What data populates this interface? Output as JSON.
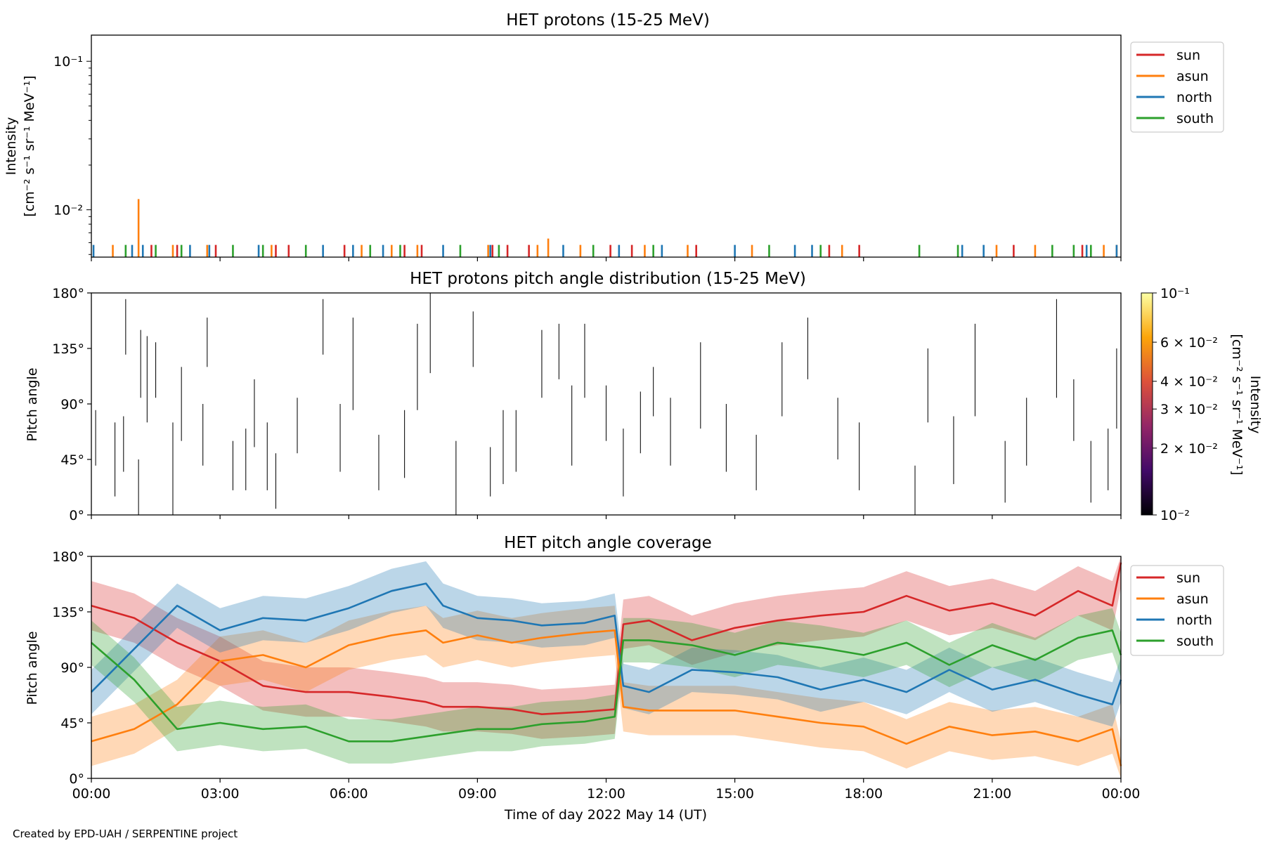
{
  "colors": {
    "sun": "#d62728",
    "asun": "#ff7f0e",
    "north": "#1f77b4",
    "south": "#2ca02c"
  },
  "xaxis": {
    "label": "Time of day 2022 May 14 (UT)",
    "ticks": [
      "00:00",
      "03:00",
      "06:00",
      "09:00",
      "12:00",
      "15:00",
      "18:00",
      "21:00",
      "00:00"
    ],
    "range_hours": [
      0,
      24
    ]
  },
  "footer": {
    "credit": "Created by EPD-UAH / SERPENTINE project"
  },
  "chart_data": [
    {
      "type": "line",
      "title": "HET protons (15-25 MeV)",
      "ylabel_lines": [
        "Intensity",
        "[cm⁻² s⁻¹ sr⁻¹ MeV⁻¹]"
      ],
      "yscale": "log",
      "ylim": [
        0.0048,
        0.15
      ],
      "yticks": [
        {
          "value": 0.1,
          "label": "10⁻¹"
        },
        {
          "value": 0.01,
          "label": "10⁻²"
        }
      ],
      "legend_position": "outside-right",
      "series": [
        {
          "name": "sun",
          "spikes": [
            [
              1.4,
              0.0058
            ],
            [
              2.0,
              0.0058
            ],
            [
              2.9,
              0.0058
            ],
            [
              4.3,
              0.0058
            ],
            [
              4.6,
              0.0058
            ],
            [
              5.9,
              0.0058
            ],
            [
              7.3,
              0.0058
            ],
            [
              7.7,
              0.0058
            ],
            [
              9.35,
              0.0058
            ],
            [
              9.7,
              0.0058
            ],
            [
              10.2,
              0.0058
            ],
            [
              12.1,
              0.0058
            ],
            [
              12.6,
              0.0058
            ],
            [
              14.1,
              0.0058
            ],
            [
              17.2,
              0.0058
            ],
            [
              17.9,
              0.0058
            ],
            [
              21.5,
              0.0058
            ],
            [
              23.1,
              0.0058
            ]
          ]
        },
        {
          "name": "asun",
          "spikes": [
            [
              0.5,
              0.0058
            ],
            [
              1.1,
              0.0118
            ],
            [
              1.9,
              0.0058
            ],
            [
              2.7,
              0.0058
            ],
            [
              4.2,
              0.0058
            ],
            [
              6.3,
              0.0058
            ],
            [
              7.0,
              0.0058
            ],
            [
              7.6,
              0.0058
            ],
            [
              9.25,
              0.0058
            ],
            [
              10.4,
              0.0058
            ],
            [
              10.65,
              0.0064
            ],
            [
              11.4,
              0.0058
            ],
            [
              12.9,
              0.0058
            ],
            [
              13.9,
              0.0058
            ],
            [
              15.4,
              0.0058
            ],
            [
              17.5,
              0.0058
            ],
            [
              21.1,
              0.0058
            ],
            [
              22.0,
              0.0058
            ],
            [
              23.6,
              0.0058
            ],
            [
              23.9,
              0.0058
            ]
          ]
        },
        {
          "name": "north",
          "spikes": [
            [
              0.05,
              0.0058
            ],
            [
              0.95,
              0.0058
            ],
            [
              1.2,
              0.0058
            ],
            [
              2.3,
              0.0058
            ],
            [
              2.75,
              0.0058
            ],
            [
              3.9,
              0.0058
            ],
            [
              5.4,
              0.0058
            ],
            [
              6.1,
              0.0058
            ],
            [
              6.8,
              0.0058
            ],
            [
              8.2,
              0.0058
            ],
            [
              9.3,
              0.0058
            ],
            [
              11.0,
              0.0058
            ],
            [
              12.3,
              0.0058
            ],
            [
              13.3,
              0.0058
            ],
            [
              15.0,
              0.0058
            ],
            [
              16.4,
              0.0058
            ],
            [
              16.8,
              0.0058
            ],
            [
              20.3,
              0.0058
            ],
            [
              20.8,
              0.0058
            ],
            [
              23.2,
              0.0058
            ],
            [
              23.9,
              0.0058
            ]
          ]
        },
        {
          "name": "south",
          "spikes": [
            [
              0.8,
              0.0058
            ],
            [
              1.5,
              0.0058
            ],
            [
              2.1,
              0.0058
            ],
            [
              3.3,
              0.0058
            ],
            [
              4.0,
              0.0058
            ],
            [
              5.0,
              0.0058
            ],
            [
              6.5,
              0.0058
            ],
            [
              7.2,
              0.0058
            ],
            [
              8.6,
              0.0058
            ],
            [
              9.5,
              0.0058
            ],
            [
              11.7,
              0.0058
            ],
            [
              13.1,
              0.0058
            ],
            [
              15.8,
              0.0058
            ],
            [
              17.0,
              0.0058
            ],
            [
              19.3,
              0.0058
            ],
            [
              20.2,
              0.0058
            ],
            [
              22.4,
              0.0058
            ],
            [
              22.9,
              0.0058
            ],
            [
              23.3,
              0.0058
            ]
          ]
        }
      ]
    },
    {
      "type": "scatter",
      "title": "HET protons pitch angle distribution (15-25 MeV)",
      "ylabel": "Pitch angle",
      "ylim": [
        0,
        180
      ],
      "yticks": [
        "0°",
        "45°",
        "90°",
        "135°",
        "180°"
      ],
      "colorbar": {
        "label_lines": [
          "Intensity",
          "[cm⁻² s⁻¹ sr⁻¹ MeV⁻¹]"
        ],
        "scale": "log",
        "range": [
          0.01,
          0.1
        ],
        "ticks": [
          {
            "value": 0.01,
            "label": "10⁻²"
          },
          {
            "value": 0.02,
            "label": "2 × 10⁻²"
          },
          {
            "value": 0.03,
            "label": "3 × 10⁻²"
          },
          {
            "value": 0.04,
            "label": "4 × 10⁻²"
          },
          {
            "value": 0.06,
            "label": "6 × 10⁻²"
          },
          {
            "value": 0.1,
            "label": "10⁻¹"
          }
        ],
        "colors": [
          "#000004",
          "#420a68",
          "#932667",
          "#dd513a",
          "#fca50a",
          "#fcffa4"
        ]
      },
      "segments": [
        [
          0.1,
          40,
          85
        ],
        [
          0.55,
          15,
          75
        ],
        [
          0.75,
          35,
          80
        ],
        [
          0.8,
          130,
          175
        ],
        [
          1.1,
          0,
          45
        ],
        [
          1.15,
          95,
          150
        ],
        [
          1.3,
          75,
          145
        ],
        [
          1.5,
          95,
          140
        ],
        [
          1.9,
          0,
          75
        ],
        [
          2.1,
          60,
          120
        ],
        [
          2.6,
          40,
          90
        ],
        [
          2.7,
          120,
          160
        ],
        [
          3.3,
          20,
          60
        ],
        [
          3.6,
          20,
          70
        ],
        [
          3.8,
          55,
          110
        ],
        [
          4.1,
          20,
          75
        ],
        [
          4.3,
          5,
          50
        ],
        [
          4.8,
          50,
          95
        ],
        [
          5.4,
          130,
          175
        ],
        [
          5.8,
          35,
          90
        ],
        [
          6.1,
          85,
          160
        ],
        [
          6.7,
          20,
          65
        ],
        [
          7.3,
          30,
          85
        ],
        [
          7.6,
          85,
          155
        ],
        [
          7.9,
          115,
          180
        ],
        [
          8.5,
          0,
          60
        ],
        [
          8.9,
          120,
          165
        ],
        [
          9.3,
          15,
          55
        ],
        [
          9.6,
          25,
          85
        ],
        [
          9.9,
          35,
          85
        ],
        [
          10.5,
          95,
          150
        ],
        [
          10.9,
          110,
          155
        ],
        [
          11.2,
          40,
          105
        ],
        [
          11.5,
          95,
          155
        ],
        [
          12.0,
          60,
          105
        ],
        [
          12.4,
          15,
          70
        ],
        [
          12.8,
          50,
          100
        ],
        [
          13.1,
          80,
          120
        ],
        [
          13.5,
          40,
          95
        ],
        [
          14.2,
          70,
          140
        ],
        [
          14.8,
          35,
          90
        ],
        [
          15.5,
          20,
          65
        ],
        [
          16.1,
          80,
          140
        ],
        [
          16.7,
          110,
          160
        ],
        [
          17.4,
          45,
          95
        ],
        [
          17.9,
          20,
          75
        ],
        [
          19.2,
          0,
          40
        ],
        [
          19.5,
          75,
          135
        ],
        [
          20.1,
          25,
          80
        ],
        [
          20.6,
          80,
          155
        ],
        [
          21.3,
          10,
          60
        ],
        [
          21.8,
          40,
          95
        ],
        [
          22.5,
          95,
          175
        ],
        [
          22.9,
          60,
          110
        ],
        [
          23.3,
          10,
          60
        ],
        [
          23.7,
          20,
          70
        ],
        [
          23.9,
          70,
          135
        ]
      ]
    },
    {
      "type": "area",
      "title": "HET pitch angle coverage",
      "ylabel": "Pitch angle",
      "ylim": [
        0,
        180
      ],
      "yticks": [
        "0°",
        "45°",
        "90°",
        "135°",
        "180°"
      ],
      "legend_position": "outside-right",
      "series": [
        {
          "name": "sun",
          "band_halfwidth": 20,
          "x": [
            0,
            1,
            2,
            3,
            4,
            5,
            6,
            7,
            7.8,
            8.2,
            9,
            9.8,
            10.5,
            11.5,
            12.2,
            12.4,
            13,
            14,
            15,
            16,
            17,
            18,
            19,
            20,
            21,
            22,
            23,
            23.8,
            24
          ],
          "y": [
            140,
            130,
            110,
            95,
            75,
            70,
            70,
            66,
            62,
            58,
            58,
            56,
            52,
            54,
            56,
            125,
            128,
            112,
            122,
            128,
            132,
            135,
            148,
            136,
            142,
            132,
            152,
            140,
            175
          ]
        },
        {
          "name": "asun",
          "band_halfwidth": 20,
          "x": [
            0,
            1,
            2,
            3,
            4,
            5,
            6,
            7,
            7.8,
            8.2,
            9,
            9.8,
            10.5,
            11.5,
            12.2,
            12.4,
            13,
            14,
            15,
            16,
            17,
            18,
            19,
            20,
            21,
            22,
            23,
            23.8,
            24
          ],
          "y": [
            30,
            40,
            60,
            95,
            100,
            90,
            108,
            116,
            120,
            110,
            116,
            110,
            114,
            118,
            120,
            58,
            55,
            55,
            55,
            50,
            45,
            42,
            28,
            42,
            35,
            38,
            30,
            40,
            10
          ]
        },
        {
          "name": "north",
          "band_halfwidth": 18,
          "x": [
            0,
            1,
            2,
            3,
            4,
            5,
            6,
            7,
            7.8,
            8.2,
            9,
            9.8,
            10.5,
            11.5,
            12.2,
            12.4,
            13,
            14,
            15,
            16,
            17,
            18,
            19,
            20,
            21,
            22,
            23,
            23.8,
            24
          ],
          "y": [
            70,
            105,
            140,
            120,
            130,
            128,
            138,
            152,
            158,
            140,
            130,
            128,
            124,
            126,
            132,
            75,
            70,
            88,
            86,
            82,
            72,
            80,
            70,
            88,
            72,
            80,
            68,
            60,
            80
          ]
        },
        {
          "name": "south",
          "band_halfwidth": 18,
          "x": [
            0,
            1,
            2,
            3,
            4,
            5,
            6,
            7,
            7.8,
            8.2,
            9,
            9.8,
            10.5,
            11.5,
            12.2,
            12.4,
            13,
            14,
            15,
            16,
            17,
            18,
            19,
            20,
            21,
            22,
            23,
            23.8,
            24
          ],
          "y": [
            110,
            80,
            40,
            45,
            40,
            42,
            30,
            30,
            34,
            36,
            40,
            40,
            44,
            46,
            50,
            112,
            112,
            108,
            100,
            110,
            106,
            100,
            110,
            92,
            108,
            96,
            114,
            120,
            100
          ]
        }
      ]
    }
  ]
}
